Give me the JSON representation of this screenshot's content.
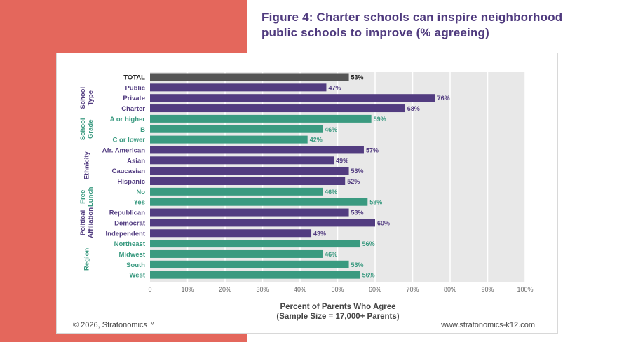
{
  "title": "Figure 4: Charter schools can inspire neighborhood public schools to improve (% agreeing)",
  "footer": {
    "copyright": "© 2026, Stratonomics™",
    "website": "www.stratonomics-k12.com"
  },
  "colors": {
    "panel": "#E4675C",
    "total": "#555555",
    "purple": "#523C80",
    "green": "#3A9A80",
    "plot_bg": "#E8E8E8",
    "title": "#4F3A7E"
  },
  "chart_data": {
    "type": "bar",
    "orientation": "horizontal",
    "title": "Figure 4: Charter schools can inspire neighborhood public schools to improve (% agreeing)",
    "xlabel": "Percent of Parents Who Agree",
    "xlabel_sub": "(Sample Size = 17,000+ Parents)",
    "xlim": [
      0,
      100
    ],
    "xticks": [
      "0",
      "10%",
      "20%",
      "30%",
      "40%",
      "50%",
      "60%",
      "70%",
      "80%",
      "90%",
      "100%"
    ],
    "grid": true,
    "categories": [
      "TOTAL",
      "Public",
      "Private",
      "Charter",
      "A or higher",
      "B",
      "C or lower",
      "Afr. American",
      "Asian",
      "Caucasian",
      "Hispanic",
      "No",
      "Yes",
      "Republican",
      "Democrat",
      "Independent",
      "Northeast",
      "Midwest",
      "South",
      "West"
    ],
    "values": [
      53,
      47,
      76,
      68,
      59,
      46,
      42,
      57,
      49,
      53,
      52,
      46,
      58,
      53,
      60,
      43,
      56,
      46,
      53,
      56
    ],
    "value_labels": [
      "53%",
      "47%",
      "76%",
      "68%",
      "59%",
      "46%",
      "42%",
      "57%",
      "49%",
      "53%",
      "52%",
      "46%",
      "58%",
      "53%",
      "60%",
      "43%",
      "56%",
      "46%",
      "53%",
      "56%"
    ],
    "row_color": [
      "total",
      "purple",
      "purple",
      "purple",
      "green",
      "green",
      "green",
      "purple",
      "purple",
      "purple",
      "purple",
      "green",
      "green",
      "purple",
      "purple",
      "purple",
      "green",
      "green",
      "green",
      "green"
    ],
    "groups": [
      {
        "lines": [
          "School",
          "Type"
        ],
        "start": 1,
        "end": 3,
        "color": "purple"
      },
      {
        "lines": [
          "School",
          "Grade"
        ],
        "start": 4,
        "end": 6,
        "color": "green"
      },
      {
        "lines": [
          "Ethnicity"
        ],
        "start": 7,
        "end": 10,
        "color": "purple"
      },
      {
        "lines": [
          "Free",
          "Lunch"
        ],
        "start": 11,
        "end": 12,
        "color": "green"
      },
      {
        "lines": [
          "Political",
          "Affiliation"
        ],
        "start": 13,
        "end": 15,
        "color": "purple"
      },
      {
        "lines": [
          "Region"
        ],
        "start": 16,
        "end": 19,
        "color": "green"
      }
    ]
  }
}
